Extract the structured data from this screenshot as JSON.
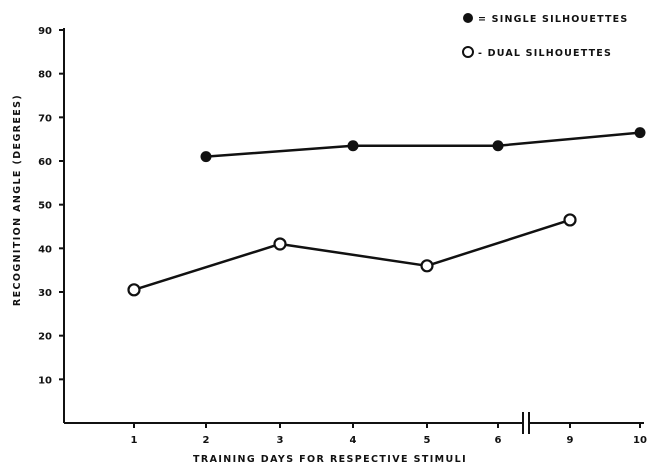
{
  "chart_data": {
    "type": "line",
    "title": "",
    "xlabel": "TRAINING DAYS FOR RESPECTIVE STIMULI",
    "ylabel": "RECOGNITION ANGLE (DEGREES)",
    "ylim": [
      0,
      90
    ],
    "yticks": [
      "10",
      "20",
      "30",
      "40",
      "50",
      "60",
      "70",
      "80",
      "90"
    ],
    "categories": [
      "1",
      "2",
      "3",
      "4",
      "5",
      "6",
      "9",
      "10"
    ],
    "axis_break_between": [
      "6",
      "9"
    ],
    "grid": false,
    "legend_position": "top-right",
    "series": [
      {
        "name": "SINGLE SILHOUETTES",
        "legend_label": "= SINGLE SILHOUETTES",
        "marker": "filled-circle",
        "color": "#111111",
        "points": [
          {
            "x": "2",
            "y": 61
          },
          {
            "x": "4",
            "y": 63.5
          },
          {
            "x": "6",
            "y": 63.5
          },
          {
            "x": "10",
            "y": 66.5
          }
        ]
      },
      {
        "name": "DUAL SILHOUETTES",
        "legend_label": "- DUAL SILHOUETTES",
        "marker": "open-circle",
        "color": "#111111",
        "points": [
          {
            "x": "1",
            "y": 30.5
          },
          {
            "x": "3",
            "y": 41
          },
          {
            "x": "5",
            "y": 36
          },
          {
            "x": "9",
            "y": 46.5
          }
        ]
      }
    ]
  }
}
